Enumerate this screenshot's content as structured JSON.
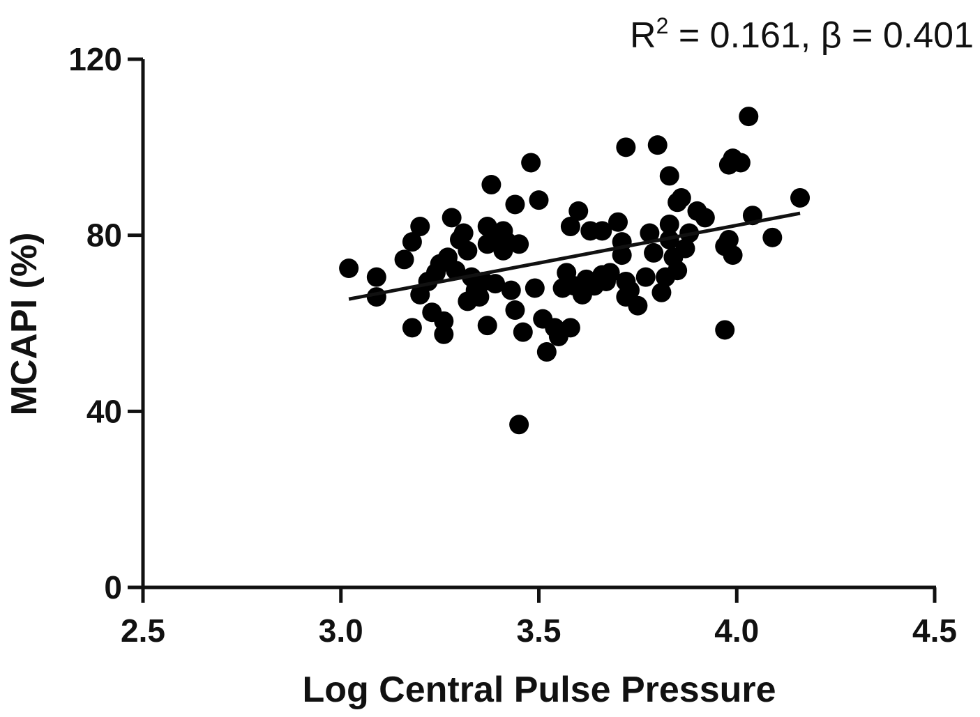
{
  "chart_data": {
    "type": "scatter",
    "xlabel": "Log Central Pulse Pressure",
    "ylabel": "MCAPI (%)",
    "xlim": [
      2.5,
      4.5
    ],
    "ylim": [
      0,
      120
    ],
    "xticks": [
      "2.5",
      "3.0",
      "3.5",
      "4.0",
      "4.5"
    ],
    "yticks": [
      "0",
      "40",
      "80",
      "120"
    ],
    "grid": false,
    "annotation": {
      "r_label": "R",
      "r_exponent": "2",
      "text": " = 0.161, β = 0.401"
    },
    "trendline": {
      "x": [
        3.02,
        4.16
      ],
      "y": [
        65.5,
        85.0
      ]
    },
    "points": [
      [
        3.02,
        72.5
      ],
      [
        3.09,
        70.5
      ],
      [
        3.09,
        66.0
      ],
      [
        3.16,
        74.5
      ],
      [
        3.18,
        78.5
      ],
      [
        3.18,
        59.0
      ],
      [
        3.2,
        82.0
      ],
      [
        3.2,
        66.5
      ],
      [
        3.22,
        69.5
      ],
      [
        3.23,
        62.5
      ],
      [
        3.24,
        71.5
      ],
      [
        3.25,
        73.5
      ],
      [
        3.26,
        60.5
      ],
      [
        3.26,
        57.5
      ],
      [
        3.27,
        75.0
      ],
      [
        3.28,
        84.0
      ],
      [
        3.29,
        72.0
      ],
      [
        3.3,
        79.0
      ],
      [
        3.31,
        80.5
      ],
      [
        3.32,
        76.5
      ],
      [
        3.32,
        65.0
      ],
      [
        3.33,
        70.5
      ],
      [
        3.34,
        67.5
      ],
      [
        3.35,
        66.0
      ],
      [
        3.36,
        69.5
      ],
      [
        3.37,
        82.0
      ],
      [
        3.37,
        78.0
      ],
      [
        3.37,
        59.5
      ],
      [
        3.38,
        91.5
      ],
      [
        3.39,
        69.0
      ],
      [
        3.4,
        79.0
      ],
      [
        3.41,
        81.0
      ],
      [
        3.41,
        76.5
      ],
      [
        3.42,
        78.5
      ],
      [
        3.43,
        67.5
      ],
      [
        3.44,
        63.0
      ],
      [
        3.44,
        87.0
      ],
      [
        3.45,
        78.0
      ],
      [
        3.46,
        58.0
      ],
      [
        3.45,
        37.0
      ],
      [
        3.48,
        96.5
      ],
      [
        3.49,
        68.0
      ],
      [
        3.5,
        88.0
      ],
      [
        3.51,
        61.0
      ],
      [
        3.52,
        53.5
      ],
      [
        3.54,
        59.0
      ],
      [
        3.55,
        57.0
      ],
      [
        3.56,
        68.0
      ],
      [
        3.57,
        71.5
      ],
      [
        3.58,
        82.0
      ],
      [
        3.58,
        59.0
      ],
      [
        3.59,
        68.5
      ],
      [
        3.6,
        85.5
      ],
      [
        3.61,
        66.5
      ],
      [
        3.62,
        70.0
      ],
      [
        3.63,
        81.0
      ],
      [
        3.64,
        68.5
      ],
      [
        3.66,
        81.0
      ],
      [
        3.66,
        71.0
      ],
      [
        3.67,
        69.5
      ],
      [
        3.68,
        71.5
      ],
      [
        3.7,
        83.0
      ],
      [
        3.71,
        78.5
      ],
      [
        3.71,
        75.5
      ],
      [
        3.72,
        100.0
      ],
      [
        3.72,
        69.5
      ],
      [
        3.72,
        66.0
      ],
      [
        3.73,
        67.5
      ],
      [
        3.75,
        64.0
      ],
      [
        3.77,
        70.5
      ],
      [
        3.78,
        80.5
      ],
      [
        3.79,
        76.0
      ],
      [
        3.8,
        100.5
      ],
      [
        3.81,
        67.0
      ],
      [
        3.82,
        70.5
      ],
      [
        3.83,
        82.5
      ],
      [
        3.83,
        79.0
      ],
      [
        3.83,
        93.5
      ],
      [
        3.84,
        75.0
      ],
      [
        3.85,
        87.5
      ],
      [
        3.85,
        72.0
      ],
      [
        3.86,
        88.5
      ],
      [
        3.87,
        77.0
      ],
      [
        3.88,
        80.5
      ],
      [
        3.9,
        85.5
      ],
      [
        3.92,
        84.0
      ],
      [
        3.97,
        58.5
      ],
      [
        3.97,
        77.5
      ],
      [
        3.98,
        96.0
      ],
      [
        3.98,
        79.0
      ],
      [
        3.99,
        75.5
      ],
      [
        3.99,
        97.5
      ],
      [
        4.01,
        96.5
      ],
      [
        4.03,
        107.0
      ],
      [
        4.04,
        84.5
      ],
      [
        4.09,
        79.5
      ],
      [
        4.16,
        88.5
      ]
    ]
  }
}
